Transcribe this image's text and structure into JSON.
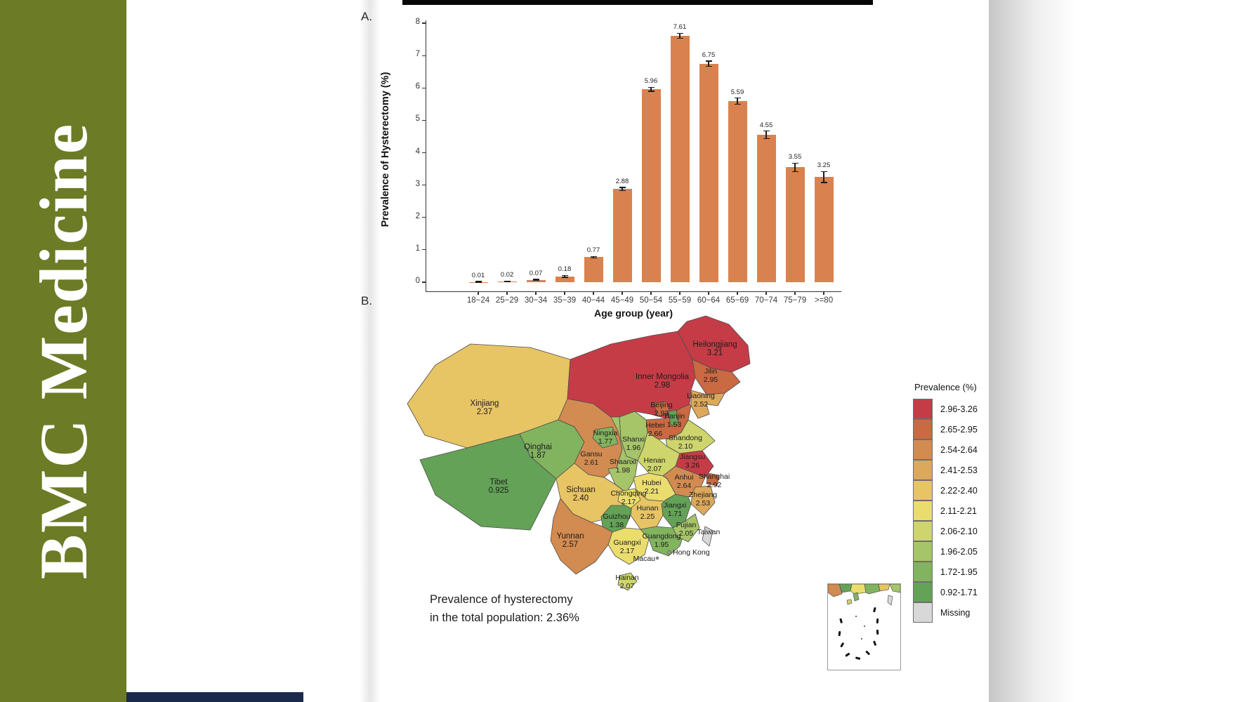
{
  "sidebar": {
    "journal_title": "BMC Medicine",
    "brand_color": "#6c7b25"
  },
  "panels": {
    "a_label": "A.",
    "b_label": "B."
  },
  "chart_data": [
    {
      "type": "bar",
      "title": "",
      "categories": [
        "18−24",
        "25−29",
        "30−34",
        "35−39",
        "40−44",
        "45−49",
        "50−54",
        "55−59",
        "60−64",
        "65−69",
        "70−74",
        "75−79",
        ">=80"
      ],
      "values": [
        0.01,
        0.02,
        0.07,
        0.18,
        0.77,
        2.88,
        5.96,
        7.61,
        6.75,
        5.59,
        4.55,
        3.55,
        3.25
      ],
      "value_labels": [
        "0.01",
        "0.02",
        "0.07",
        "0.18",
        "0.77",
        "2.88",
        "5.96",
        "7.61",
        "6.75",
        "5.59",
        "4.55",
        "3.55",
        "3.25"
      ],
      "errors": [
        0.015,
        0.015,
        0.02,
        0.03,
        0.025,
        0.05,
        0.06,
        0.08,
        0.08,
        0.1,
        0.12,
        0.13,
        0.17
      ],
      "xlabel": "Age group (year)",
      "ylabel": "Prevalence of Hysterectomy (%)",
      "ylim": [
        0,
        8
      ],
      "yticks": [
        0,
        1,
        2,
        3,
        4,
        5,
        6,
        7,
        8
      ],
      "bar_color": "#d9824f",
      "grid": false,
      "legend": "none"
    },
    {
      "type": "choropleth",
      "legend_title": "Prevalence (%)",
      "legend_position": "right",
      "annotation_lines": [
        "Prevalence of hysterectomy",
        "in the total population: 2.36%"
      ],
      "classes": [
        {
          "label": "2.96-3.26",
          "color": "#c53c47"
        },
        {
          "label": "2.65-2.95",
          "color": "#c96a42"
        },
        {
          "label": "2.54-2.64",
          "color": "#d28b51"
        },
        {
          "label": "2.41-2.53",
          "color": "#dca85b"
        },
        {
          "label": "2.22-2.40",
          "color": "#e7c464"
        },
        {
          "label": "2.11-2.21",
          "color": "#eadd6e"
        },
        {
          "label": "2.06-2.10",
          "color": "#cdd56c"
        },
        {
          "label": "1.96-2.05",
          "color": "#a6c468"
        },
        {
          "label": "1.72-1.95",
          "color": "#82b35f"
        },
        {
          "label": "0.92-1.71",
          "color": "#64a257"
        },
        {
          "label": "Missing",
          "color": "#d8d8d8"
        }
      ],
      "regions": [
        {
          "id": "heilongjiang",
          "name": "Heilongjiang",
          "value": "3.21",
          "category": 0
        },
        {
          "id": "jiangsu",
          "name": "Jiangsu",
          "value": "3.26",
          "category": 0
        },
        {
          "id": "inner_mongolia",
          "name": "Inner Mongolia",
          "value": "2.98",
          "category": 0
        },
        {
          "id": "jilin",
          "name": "Jilin",
          "value": "2.95",
          "category": 1
        },
        {
          "id": "beijing",
          "name": "Beijing",
          "value": "2.93",
          "category": 1
        },
        {
          "id": "shanghai",
          "name": "Shanghai",
          "value": "2.92",
          "category": 1
        },
        {
          "id": "hebei",
          "name": "Hebei",
          "value": "2.66",
          "category": 1
        },
        {
          "id": "anhui",
          "name": "Anhui",
          "value": "2.64",
          "category": 2
        },
        {
          "id": "gansu",
          "name": "Gansu",
          "value": "2.61",
          "category": 2
        },
        {
          "id": "yunnan",
          "name": "Yunnan",
          "value": "2.57",
          "category": 2
        },
        {
          "id": "zhejiang",
          "name": "Zhejiang",
          "value": "2.53",
          "category": 3
        },
        {
          "id": "liaoning",
          "name": "Liaoning",
          "value": "2.52",
          "category": 3
        },
        {
          "id": "sichuan",
          "name": "Sichuan",
          "value": "2.40",
          "category": 4
        },
        {
          "id": "xinjiang",
          "name": "Xinjiang",
          "value": "2.37",
          "category": 4
        },
        {
          "id": "hunan",
          "name": "Hunan",
          "value": "2.25",
          "category": 4
        },
        {
          "id": "hubei",
          "name": "Hubei",
          "value": "2.21",
          "category": 5
        },
        {
          "id": "chongqing",
          "name": "Chongqing",
          "value": "2.17",
          "category": 5
        },
        {
          "id": "guangxi",
          "name": "Guangxi",
          "value": "2.17",
          "category": 5
        },
        {
          "id": "shandong",
          "name": "Shandong",
          "value": "2.10",
          "category": 6
        },
        {
          "id": "henan",
          "name": "Henan",
          "value": "2.07",
          "category": 6
        },
        {
          "id": "hainan",
          "name": "Hainan",
          "value": "2.07",
          "category": 6
        },
        {
          "id": "fujian",
          "name": "Fujian",
          "value": "2.05",
          "category": 7
        },
        {
          "id": "shaanxi",
          "name": "Shaanxi",
          "value": "1.98",
          "category": 7
        },
        {
          "id": "shanxi",
          "name": "Shanxi",
          "value": "1.96",
          "category": 7
        },
        {
          "id": "guangdong",
          "name": "Guangdong",
          "value": "1.95",
          "category": 8
        },
        {
          "id": "qinghai",
          "name": "Qinghai",
          "value": "1.87",
          "category": 8
        },
        {
          "id": "ningxia",
          "name": "Ningxia",
          "value": "1.77",
          "category": 8
        },
        {
          "id": "jiangxi",
          "name": "Jiangxi",
          "value": "1.71",
          "category": 9
        },
        {
          "id": "tianjin",
          "name": "Tianjin",
          "value": "1.53",
          "category": 9
        },
        {
          "id": "guizhou",
          "name": "Guizhou",
          "value": "1.38",
          "category": 9
        },
        {
          "id": "tibet",
          "name": "Tibet",
          "value": "0.925",
          "category": 9
        },
        {
          "id": "taiwan",
          "name": "Taiwan",
          "value": "",
          "category": 10
        },
        {
          "id": "hongkong",
          "name": "Hong Kong",
          "value": "",
          "category": -1
        },
        {
          "id": "macau",
          "name": "Macau",
          "value": "",
          "category": -1
        }
      ]
    }
  ]
}
